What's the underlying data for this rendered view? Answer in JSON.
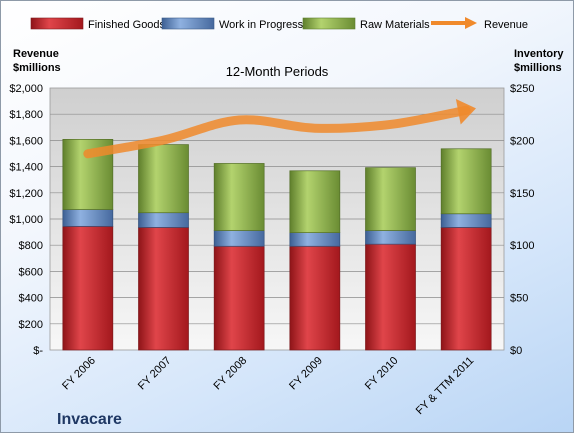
{
  "chart_data": {
    "type": "bar",
    "title": "12-Month Periods",
    "company": "Invacare",
    "categories": [
      "FY 2006",
      "FY 2007",
      "FY 2008",
      "FY 2009",
      "FY 2010",
      "FY & TTM 2011"
    ],
    "series": [
      {
        "name": "Finished Goods",
        "axis": "right",
        "color": "#c0272d",
        "values": [
          118,
          117,
          99,
          99,
          101,
          117
        ]
      },
      {
        "name": "Work in Progress",
        "axis": "right",
        "color": "#5b86c4",
        "values": [
          16,
          14,
          15,
          13,
          13,
          13
        ]
      },
      {
        "name": "Raw Materials",
        "axis": "right",
        "color": "#8db04b",
        "values": [
          67,
          65,
          64,
          59,
          60,
          62
        ]
      },
      {
        "name": "Revenue",
        "axis": "left",
        "type": "line",
        "color": "#f08a2c",
        "values": [
          1498,
          1602,
          1756,
          1693,
          1722,
          1830
        ]
      }
    ],
    "y_left": {
      "label_line1": "Revenue",
      "label_line2": "$millions",
      "ylim": [
        0,
        2000
      ],
      "ticks": [
        "$-",
        "$200",
        "$400",
        "$600",
        "$800",
        "$1,000",
        "$1,200",
        "$1,400",
        "$1,600",
        "$1,800",
        "$2,000"
      ]
    },
    "y_right": {
      "label_line1": "Inventory",
      "label_line2": "$millions",
      "ylim": [
        0,
        250
      ],
      "ticks": [
        "$0",
        "$50",
        "$100",
        "$150",
        "$200",
        "$250"
      ]
    },
    "grid": true,
    "legend_position": "top"
  }
}
